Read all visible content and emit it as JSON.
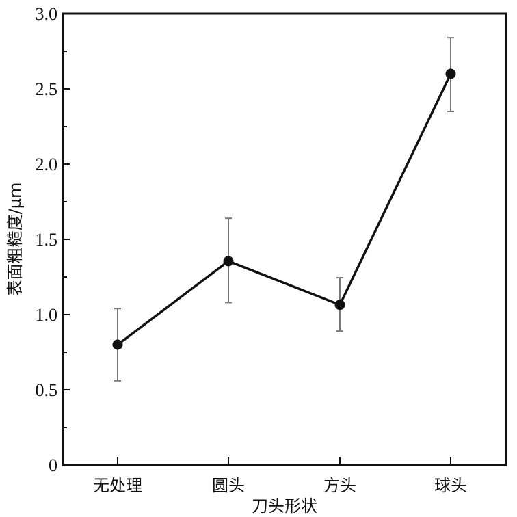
{
  "chart_data": {
    "type": "line",
    "title": "",
    "xlabel": "刀头形状",
    "ylabel": "表面粗糙度/μm",
    "categories": [
      "无处理",
      "圆头",
      "方头",
      "球头"
    ],
    "series": [
      {
        "values": [
          0.8,
          1.355,
          1.065,
          2.6
        ],
        "error_upper": [
          1.04,
          1.64,
          1.245,
          2.84
        ],
        "error_lower": [
          0.56,
          1.08,
          0.89,
          2.35
        ]
      }
    ],
    "ylim": [
      0,
      3.0
    ],
    "yticks": [
      0,
      0.5,
      1.0,
      1.5,
      2.0,
      2.5,
      3.0
    ],
    "ytick_labels": [
      "0",
      "0.5",
      "1.0",
      "1.5",
      "2.0",
      "2.5",
      "3.0"
    ],
    "grid": false,
    "colors": {
      "line": "#111111",
      "errorbar": "#777777"
    }
  }
}
